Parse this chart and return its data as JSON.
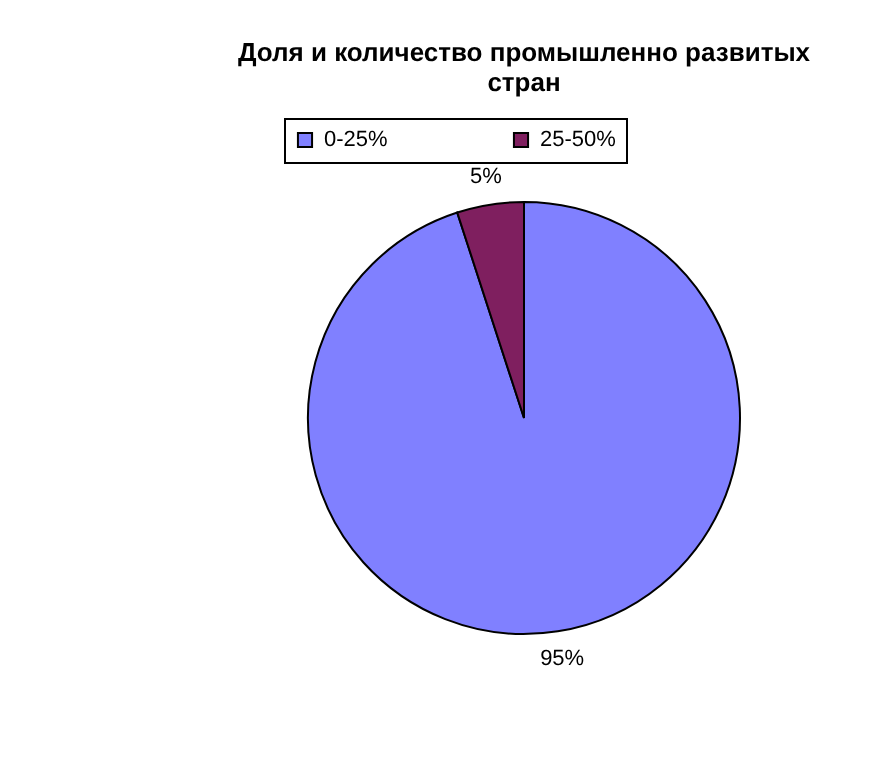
{
  "chart_data": {
    "type": "pie",
    "title": "Доля и количество промышленно развитых стран",
    "categories": [
      "0-25%",
      "25-50%"
    ],
    "values": [
      95,
      5
    ],
    "colors": [
      "#8080ff",
      "#7f1f5f"
    ],
    "value_labels": [
      "95%",
      "5%"
    ],
    "legend": "top"
  }
}
